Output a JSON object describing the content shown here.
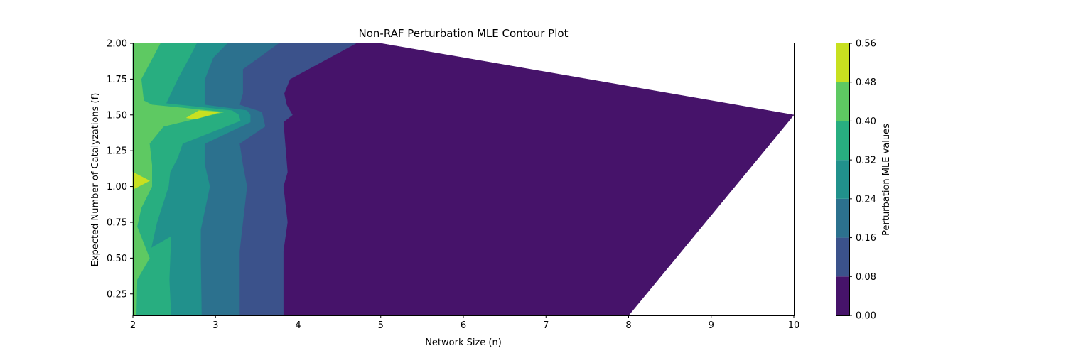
{
  "chart_data": {
    "type": "contour",
    "title": "Non-RAF Perturbation MLE Contour Plot",
    "xlabel": "Network Size (n)",
    "ylabel": "Expected Number of Catalyzations (f)",
    "xlim": [
      2,
      10
    ],
    "ylim": [
      0.1,
      2.0
    ],
    "xticks": [
      "2",
      "3",
      "4",
      "5",
      "6",
      "7",
      "8",
      "9",
      "10"
    ],
    "yticks": [
      "0.25",
      "0.50",
      "0.75",
      "1.00",
      "1.25",
      "1.50",
      "1.75",
      "2.00"
    ],
    "grid": false,
    "colorbar": {
      "label": "Perturbation MLE values",
      "levels": [
        "0.00",
        "0.08",
        "0.16",
        "0.24",
        "0.32",
        "0.40",
        "0.48",
        "0.56"
      ],
      "colors": [
        "#46136a",
        "#3b528b",
        "#2c718e",
        "#21918c",
        "#28ae80",
        "#5ec962",
        "#c8e020"
      ]
    },
    "data_boundary": [
      [
        2,
        0.1
      ],
      [
        8,
        0.1
      ],
      [
        10,
        1.5
      ],
      [
        5,
        2.0
      ],
      [
        2,
        2.0
      ]
    ],
    "bands": [
      {
        "range": "0.00-0.08",
        "color": "#46136a",
        "region": [
          [
            2,
            0.1
          ],
          [
            8,
            0.1
          ],
          [
            10,
            1.5
          ],
          [
            5,
            2.0
          ],
          [
            2,
            2.0
          ]
        ]
      },
      {
        "range": "0.08-0.16",
        "color": "#3b528b",
        "region": [
          [
            2,
            0.1
          ],
          [
            3.82,
            0.1
          ],
          [
            3.82,
            0.55
          ],
          [
            3.87,
            0.75
          ],
          [
            3.82,
            1.0
          ],
          [
            3.87,
            1.1
          ],
          [
            3.82,
            1.45
          ],
          [
            3.93,
            1.5
          ],
          [
            3.86,
            1.57
          ],
          [
            3.83,
            1.65
          ],
          [
            3.9,
            1.75
          ],
          [
            4.7,
            2.0
          ],
          [
            2,
            2.0
          ]
        ]
      },
      {
        "range": "0.16-0.24",
        "color": "#2c718e",
        "region": [
          [
            2,
            0.1
          ],
          [
            3.29,
            0.1
          ],
          [
            3.29,
            0.55
          ],
          [
            3.33,
            0.75
          ],
          [
            3.38,
            1.0
          ],
          [
            3.33,
            1.15
          ],
          [
            3.29,
            1.3
          ],
          [
            3.6,
            1.42
          ],
          [
            3.56,
            1.52
          ],
          [
            3.29,
            1.57
          ],
          [
            3.33,
            1.65
          ],
          [
            3.33,
            1.82
          ],
          [
            3.76,
            2.0
          ],
          [
            2,
            2.0
          ]
        ]
      },
      {
        "range": "0.24-0.32",
        "color": "#21918c",
        "region": [
          [
            2,
            0.1
          ],
          [
            2.83,
            0.1
          ],
          [
            2.82,
            0.5
          ],
          [
            2.82,
            0.7
          ],
          [
            2.93,
            1.0
          ],
          [
            2.87,
            1.15
          ],
          [
            2.87,
            1.3
          ],
          [
            3.42,
            1.45
          ],
          [
            3.42,
            1.5
          ],
          [
            3.38,
            1.53
          ],
          [
            2.87,
            1.57
          ],
          [
            2.87,
            1.75
          ],
          [
            2.97,
            1.9
          ],
          [
            3.14,
            2.0
          ],
          [
            2,
            2.0
          ]
        ]
      },
      {
        "range": "0.32-0.40",
        "color": "#28ae80",
        "region": [
          [
            2,
            0.1
          ],
          [
            2.46,
            0.1
          ],
          [
            2.44,
            0.35
          ],
          [
            2.46,
            0.65
          ],
          [
            2.22,
            0.57
          ],
          [
            2.29,
            0.75
          ],
          [
            2.43,
            1.0
          ],
          [
            2.45,
            1.1
          ],
          [
            2.54,
            1.2
          ],
          [
            2.6,
            1.3
          ],
          [
            3.3,
            1.46
          ],
          [
            3.28,
            1.5
          ],
          [
            3.2,
            1.53
          ],
          [
            2.4,
            1.58
          ],
          [
            2.54,
            1.75
          ],
          [
            2.68,
            1.9
          ],
          [
            2.77,
            2.0
          ],
          [
            2,
            2.0
          ]
        ]
      },
      {
        "range": "0.40-0.48",
        "color": "#5ec962",
        "region": [
          [
            2,
            0.1
          ],
          [
            2.04,
            0.1
          ],
          [
            2.05,
            0.35
          ],
          [
            2.2,
            0.5
          ],
          [
            2.05,
            0.72
          ],
          [
            2.1,
            0.85
          ],
          [
            2.23,
            1.0
          ],
          [
            2.23,
            1.15
          ],
          [
            2.2,
            1.3
          ],
          [
            2.37,
            1.42
          ],
          [
            3.1,
            1.52
          ],
          [
            2.23,
            1.57
          ],
          [
            2.13,
            1.6
          ],
          [
            2.1,
            1.75
          ],
          [
            2.33,
            2.0
          ],
          [
            2,
            2.0
          ]
        ]
      },
      {
        "range": "0.48-0.56",
        "color": "#c8e020",
        "region": [
          [
            2.65,
            1.48
          ],
          [
            2.8,
            1.53
          ],
          [
            3.05,
            1.52
          ],
          [
            2.75,
            1.47
          ]
        ],
        "region2": [
          [
            2,
            0.98
          ],
          [
            2.2,
            1.04
          ],
          [
            2,
            1.1
          ]
        ]
      }
    ]
  }
}
